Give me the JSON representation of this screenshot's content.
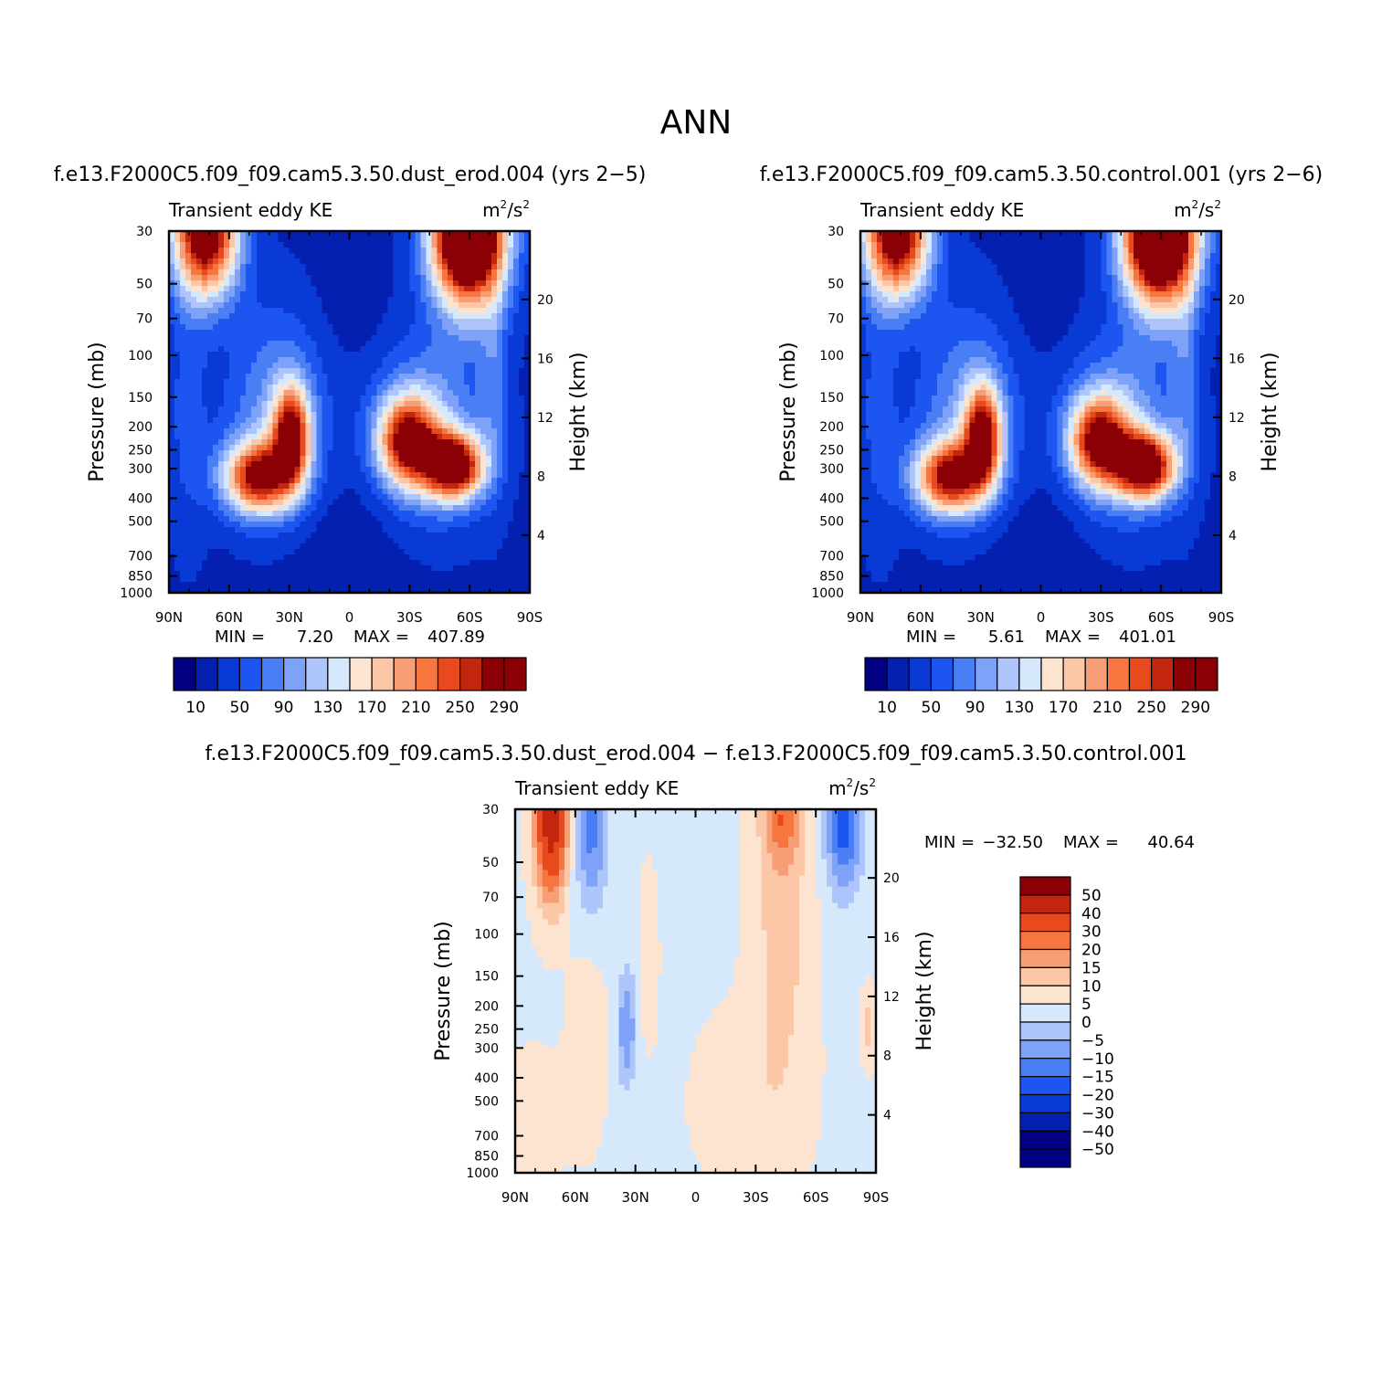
{
  "title": "ANN",
  "chart_data": [
    {
      "type": "heatmap",
      "id": "top-left",
      "case_title": "f.e13.F2000C5.f09_f09.cam5.3.50.dust_erod.004 (yrs 2−5)",
      "variable": "Transient eddy KE",
      "units_base": "m",
      "units_exp1": "2",
      "units_mid": "/s",
      "units_exp2": "2",
      "ylabel": "Pressure (mb)",
      "ylabel_right": "Height (km)",
      "xticks": [
        "90N",
        "60N",
        "30N",
        "0",
        "30S",
        "60S",
        "90S"
      ],
      "yticks": [
        "30",
        "50",
        "70",
        "100",
        "150",
        "200",
        "250",
        "300",
        "400",
        "500",
        "700",
        "850",
        "1000"
      ],
      "yticks_right": [
        "20",
        "16",
        "12",
        "8",
        "4"
      ],
      "min_label": "MIN =",
      "min_value": "7.20",
      "max_label": "MAX =",
      "max_value": "407.89",
      "legend_labels": [
        "10",
        "50",
        "90",
        "130",
        "170",
        "210",
        "250",
        "290"
      ]
    },
    {
      "type": "heatmap",
      "id": "top-right",
      "case_title": "f.e13.F2000C5.f09_f09.cam5.3.50.control.001 (yrs 2−6)",
      "variable": "Transient eddy KE",
      "units_base": "m",
      "units_exp1": "2",
      "units_mid": "/s",
      "units_exp2": "2",
      "ylabel": "Pressure (mb)",
      "ylabel_right": "Height (km)",
      "xticks": [
        "90N",
        "60N",
        "30N",
        "0",
        "30S",
        "60S",
        "90S"
      ],
      "yticks": [
        "30",
        "50",
        "70",
        "100",
        "150",
        "200",
        "250",
        "300",
        "400",
        "500",
        "700",
        "850",
        "1000"
      ],
      "yticks_right": [
        "20",
        "16",
        "12",
        "8",
        "4"
      ],
      "min_label": "MIN =",
      "min_value": "5.61",
      "max_label": "MAX =",
      "max_value": "401.01",
      "legend_labels": [
        "10",
        "50",
        "90",
        "130",
        "170",
        "210",
        "250",
        "290"
      ]
    },
    {
      "type": "heatmap",
      "id": "bottom-diff",
      "case_title": "f.e13.F2000C5.f09_f09.cam5.3.50.dust_erod.004 − f.e13.F2000C5.f09_f09.cam5.3.50.control.001",
      "variable": "Transient eddy KE",
      "units_base": "m",
      "units_exp1": "2",
      "units_mid": "/s",
      "units_exp2": "2",
      "ylabel": "Pressure (mb)",
      "ylabel_right": "Height (km)",
      "xticks": [
        "90N",
        "60N",
        "30N",
        "0",
        "30S",
        "60S",
        "90S"
      ],
      "yticks": [
        "30",
        "50",
        "70",
        "100",
        "150",
        "200",
        "250",
        "300",
        "400",
        "500",
        "700",
        "850",
        "1000"
      ],
      "yticks_right": [
        "20",
        "16",
        "12",
        "8",
        "4"
      ],
      "min_label": "MIN =",
      "min_value": "−32.50",
      "max_label": "MAX =",
      "max_value": "40.64",
      "legend_labels": [
        "50",
        "40",
        "30",
        "20",
        "15",
        "10",
        "5",
        "0",
        "−5",
        "−10",
        "−15",
        "−20",
        "−30",
        "−40",
        "−50"
      ]
    }
  ],
  "colors": {
    "palette": [
      "#000080",
      "#0420b0",
      "#0a3ad6",
      "#1c55f0",
      "#4a7ef5",
      "#7ea2f7",
      "#aec5fb",
      "#d6e8fc",
      "#fde4d0",
      "#fbc7a6",
      "#f89e76",
      "#f6763f",
      "#e84a1e",
      "#c3260e",
      "#8a0005"
    ]
  }
}
